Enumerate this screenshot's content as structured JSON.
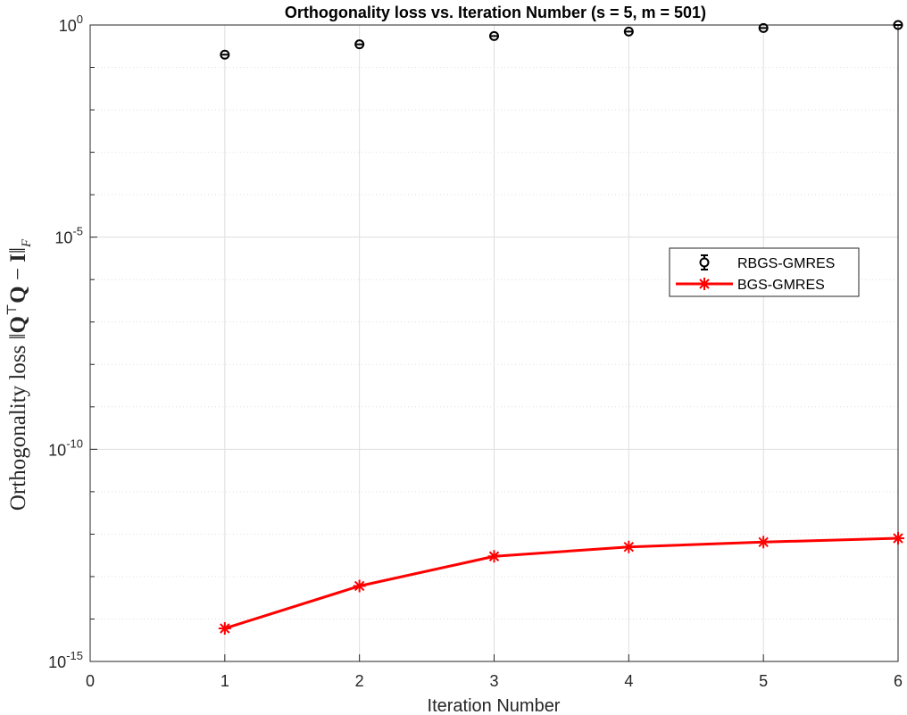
{
  "chart_data": {
    "type": "scatter",
    "title": "Orthogonality loss vs. Iteration Number (s = 5, m = 501)",
    "xlabel": "Iteration Number",
    "ylabel": "Orthogonality loss ||Q^⊤Q − I||_F",
    "ylabel_parts": {
      "prefix": "Orthogonality loss ‖",
      "q1": "Q",
      "top": "⊤",
      "q2": "Q",
      "minus": " − ",
      "ident": "I",
      "close": "‖",
      "sub": "F"
    },
    "xlim": [
      0,
      6
    ],
    "ylim": [
      1e-15,
      1
    ],
    "yscale": "log",
    "grid": true,
    "legend_position": "right",
    "x_ticks": [
      "0",
      "1",
      "2",
      "3",
      "4",
      "5",
      "6"
    ],
    "y_ticks": [
      {
        "base": "10",
        "exp": "0"
      },
      {
        "base": "10",
        "exp": "-5"
      },
      {
        "base": "10",
        "exp": "-10"
      },
      {
        "base": "10",
        "exp": "-15"
      }
    ],
    "series": [
      {
        "name": "RBGS-GMRES",
        "style": "errorbar-circle",
        "color": "#000000",
        "x": [
          1,
          2,
          3,
          4,
          5,
          6
        ],
        "y": [
          0.2,
          0.35,
          0.55,
          0.7,
          0.85,
          1.0
        ]
      },
      {
        "name": "BGS-GMRES",
        "style": "line-star",
        "color": "#ff0000",
        "x": [
          1,
          2,
          3,
          4,
          5,
          6
        ],
        "y": [
          6e-15,
          6e-14,
          3e-13,
          5e-13,
          6.5e-13,
          8e-13
        ]
      }
    ]
  }
}
